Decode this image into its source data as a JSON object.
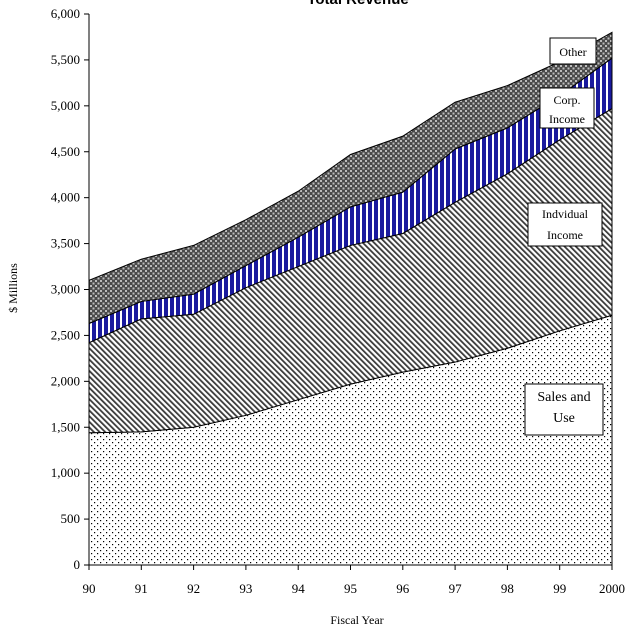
{
  "chart_data": {
    "type": "area",
    "stacked": true,
    "title": "Total Revenue",
    "xlabel": "Fiscal Year",
    "ylabel": "$ Millions",
    "ylim": [
      0,
      6000
    ],
    "y_ticks": [
      0,
      500,
      1000,
      1500,
      2000,
      2500,
      3000,
      3500,
      4000,
      4500,
      5000,
      5500,
      6000
    ],
    "y_tick_labels": [
      "0",
      "500",
      "1,000",
      "1,500",
      "2,000",
      "2,500",
      "3,000",
      "3,500",
      "4,000",
      "4,500",
      "5,000",
      "5,500",
      "6,000"
    ],
    "x_tick_labels": [
      "90",
      "91",
      "92",
      "93",
      "94",
      "95",
      "96",
      "97",
      "98",
      "99",
      "2000"
    ],
    "x": [
      90,
      91,
      92,
      93,
      94,
      95,
      96,
      97,
      98,
      99,
      100
    ],
    "grid": false,
    "legend": "inline callouts",
    "series": [
      {
        "name": "Sales and Use",
        "pattern": "dots",
        "color": "#000000",
        "values": [
          1440,
          1450,
          1500,
          1630,
          1800,
          1970,
          2100,
          2210,
          2360,
          2550,
          2720
        ]
      },
      {
        "name": "Indvidual Income",
        "pattern": "diagonal",
        "color": "#000000",
        "values": [
          980,
          1230,
          1230,
          1390,
          1450,
          1510,
          1510,
          1740,
          1900,
          2080,
          2250
        ]
      },
      {
        "name": "Corp. Income",
        "pattern": "vertical-stripes",
        "color": "#1a1a9e",
        "values": [
          210,
          190,
          220,
          240,
          320,
          420,
          450,
          580,
          500,
          480,
          550
        ]
      },
      {
        "name": "Other",
        "pattern": "crosshatch",
        "color": "#555555",
        "values": [
          470,
          460,
          530,
          500,
          500,
          570,
          610,
          510,
          460,
          370,
          280
        ]
      }
    ]
  }
}
